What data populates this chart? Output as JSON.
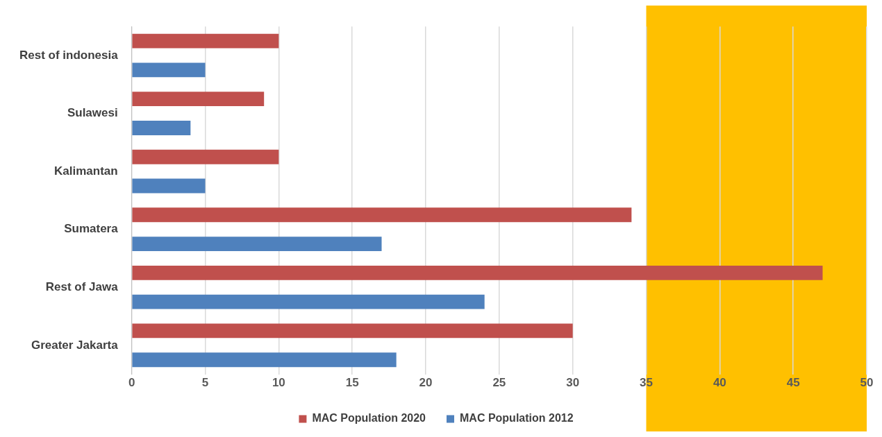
{
  "chart_data": {
    "type": "bar",
    "orientation": "horizontal",
    "categories": [
      "Rest of indonesia",
      "Sulawesi",
      "Kalimantan",
      "Sumatera",
      "Rest of Jawa",
      "Greater Jakarta"
    ],
    "series": [
      {
        "name": "MAC Population 2020",
        "color": "#c0504d",
        "values": [
          10,
          9,
          10,
          34,
          47,
          30
        ]
      },
      {
        "name": "MAC Population 2012",
        "color": "#4f81bd",
        "values": [
          5,
          4,
          5,
          17,
          24,
          18
        ]
      }
    ],
    "xlim": [
      0,
      50
    ],
    "xticks": [
      0,
      5,
      10,
      15,
      20,
      25,
      30,
      35,
      40,
      45,
      50
    ],
    "grid": "x",
    "legend": "bottom",
    "bands": [
      {
        "axis": "x",
        "from": 35,
        "to": 50,
        "color": "#ffc000"
      }
    ]
  }
}
